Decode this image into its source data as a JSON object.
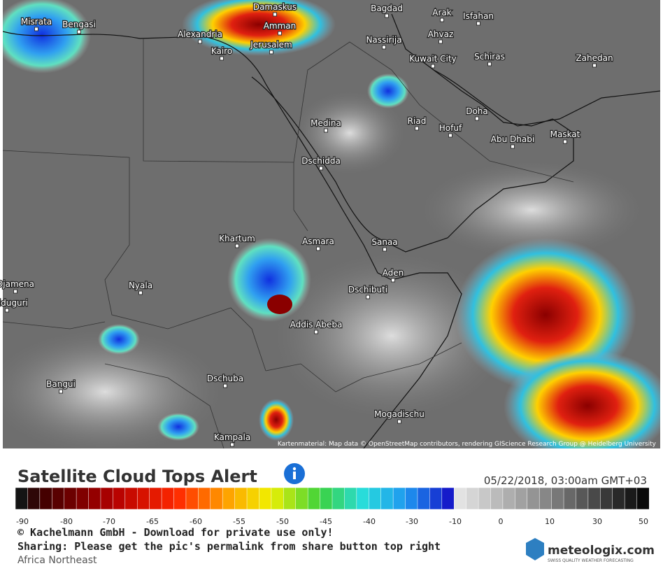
{
  "map": {
    "attribution": "Kartenmaterial: Map data © OpenStreetMap contributors, rendering GIScience Research Group @ Heidelberg University",
    "cities": [
      "Damaskus",
      "Bagdad",
      "Arak",
      "Isfahan",
      "Misrata",
      "Bengasi",
      "Amman",
      "Alexandria",
      "Nassirija",
      "Ahvaz",
      "Jerusalem",
      "Kairo",
      "Kuwait City",
      "Schiras",
      "Zahedan",
      "Doha",
      "Medina",
      "Riad",
      "Hofuf",
      "Abu Dhabi",
      "Maskat",
      "Dschidda",
      "Khartum",
      "Asmara",
      "Sanaa",
      "Aden",
      "Djamena",
      "Nyala",
      "Dschibuti",
      "Maiduguri",
      "Addis Abeba",
      "Bangui",
      "Dschuba",
      "Mogadischu",
      "Kampala"
    ]
  },
  "panel": {
    "title": "Satellite Cloud Tops Alert",
    "timestamp": "05/22/2018, 03:00am GMT+03",
    "scale_ticks": [
      -90,
      -80,
      -70,
      -65,
      -60,
      -55,
      -50,
      -45,
      -40,
      -30,
      -10,
      0,
      10,
      30,
      50
    ],
    "copyright": "© Kachelmann GmbH - Download for private use only!",
    "sharing": "Sharing: Please get the pic's permalink from share button top right",
    "region": "Africa Northeast",
    "logo": "meteologix.com",
    "tagline": "SWISS QUALITY WEATHER FORECASTING"
  }
}
